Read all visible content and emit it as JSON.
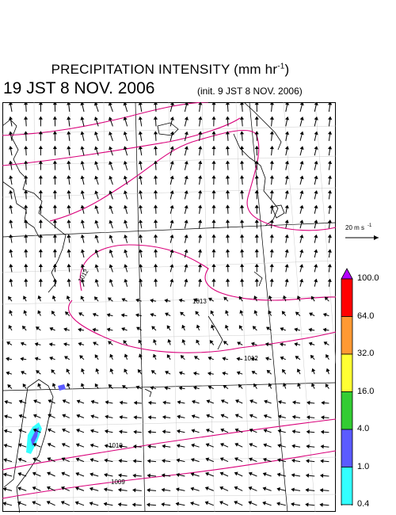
{
  "header": {
    "title": "PRECIPITATION INTENSITY (mm hr",
    "title_exponent": "-1",
    "title_close": ")",
    "valid_time": "19 JST 8 NOV. 2006",
    "init_time": "(init. 9 JST 8 NOV. 2006)"
  },
  "map": {
    "region": "East Asia / western North Pacific",
    "features": [
      "coastline",
      "lat-lon-grid",
      "isobars",
      "surface-wind-vectors",
      "precipitation-shading"
    ],
    "isobar_labels": [
      "1012",
      "1013",
      "1012",
      "1010",
      "1009"
    ],
    "line_colors": {
      "isobar": "#d9007a",
      "coast": "#000000",
      "grid": "#000000",
      "wind": "#000000"
    }
  },
  "wind_reference": {
    "label": "20 m s",
    "exponent": "-1"
  },
  "colorbar": {
    "levels": [
      "100.0",
      "64.0",
      "32.0",
      "16.0",
      "4.0",
      "1.0",
      "0.4"
    ],
    "colors": [
      "#b400ff",
      "#ff0000",
      "#ff9933",
      "#ffff33",
      "#33cc33",
      "#5b5bff",
      "#33ffff"
    ]
  }
}
